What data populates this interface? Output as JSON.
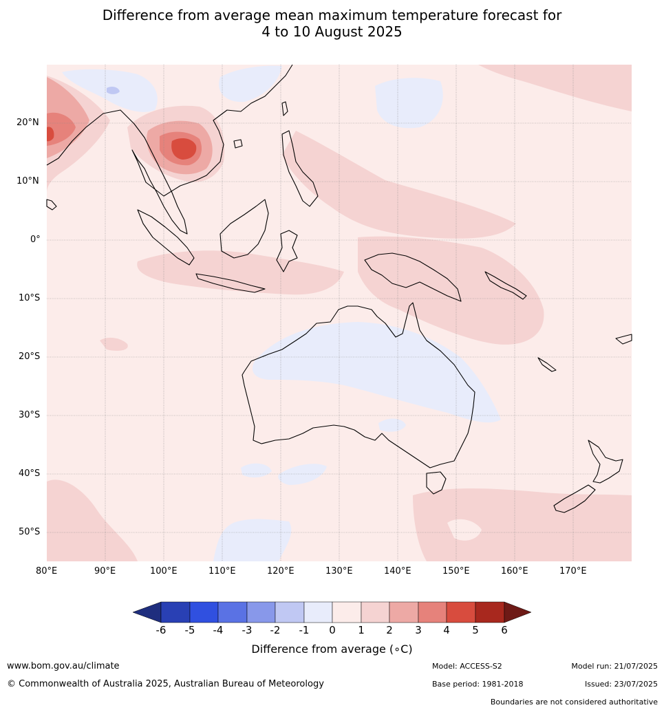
{
  "title_line1": "Difference from average mean maximum temperature forecast for",
  "title_line2": "4 to 10 August 2025",
  "map": {
    "lon_range": [
      80,
      180
    ],
    "lat_range": [
      -55,
      30
    ],
    "lat_labels": [
      "20°N",
      "10°N",
      "0°",
      "10°S",
      "20°S",
      "30°S",
      "40°S",
      "50°S"
    ],
    "lat_values": [
      20,
      10,
      0,
      -10,
      -20,
      -30,
      -40,
      -50
    ],
    "lon_labels": [
      "80°E",
      "90°E",
      "100°E",
      "110°E",
      "120°E",
      "130°E",
      "140°E",
      "150°E",
      "160°E",
      "170°E"
    ],
    "lon_values": [
      80,
      90,
      100,
      110,
      120,
      130,
      140,
      150,
      160,
      170
    ],
    "background_color": "#fcecea"
  },
  "colorbar": {
    "title": "Difference from average (∘C)",
    "labels": [
      "-6",
      "-5",
      "-4",
      "-3",
      "-2",
      "-1",
      "0",
      "1",
      "2",
      "3",
      "4",
      "5",
      "6"
    ],
    "colors": [
      "#1f2e7e",
      "#2940b4",
      "#3050e0",
      "#5a72e4",
      "#8898ea",
      "#c0c8f3",
      "#e8ecfb",
      "#fcecea",
      "#f5d3d2",
      "#eda9a5",
      "#e6827b",
      "#d84c3e",
      "#a8281e",
      "#6e1a16"
    ]
  },
  "footer": {
    "url": "www.bom.gov.au/climate",
    "copyright": "© Commonwealth of Australia 2025, Australian Bureau of Meteorology",
    "model": "Model: ACCESS-S2",
    "base_period": "Base period: 1981-2018",
    "model_run": "Model run: 21/07/2025",
    "issued": "Issued: 23/07/2025",
    "disclaimer": "Boundaries are not considered authoritative"
  }
}
